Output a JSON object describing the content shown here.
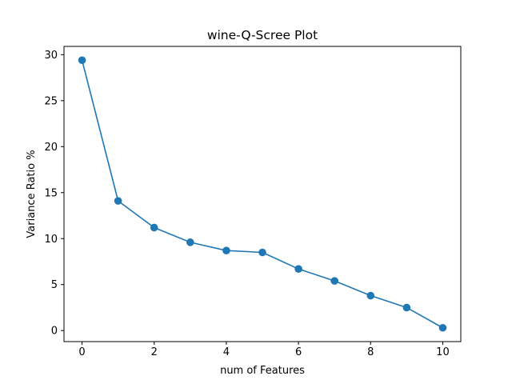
{
  "chart_data": {
    "type": "line",
    "title": "wine-Q-Scree Plot",
    "xlabel": "num of Features",
    "ylabel": "Variance Ratio %",
    "x": [
      0,
      1,
      2,
      3,
      4,
      5,
      6,
      7,
      8,
      9,
      10
    ],
    "series": [
      {
        "values": [
          29.4,
          14.1,
          11.2,
          9.6,
          8.7,
          8.5,
          6.7,
          5.4,
          3.8,
          2.5,
          0.3
        ],
        "color": "#1f77b4",
        "marker": "circle"
      }
    ],
    "xlim": [
      -0.5,
      10.5
    ],
    "ylim": [
      -1.2,
      30.9
    ],
    "xticks": [
      0,
      2,
      4,
      6,
      8,
      10
    ],
    "yticks": [
      0,
      5,
      10,
      15,
      20,
      25,
      30
    ],
    "grid": false,
    "legend": "none"
  }
}
